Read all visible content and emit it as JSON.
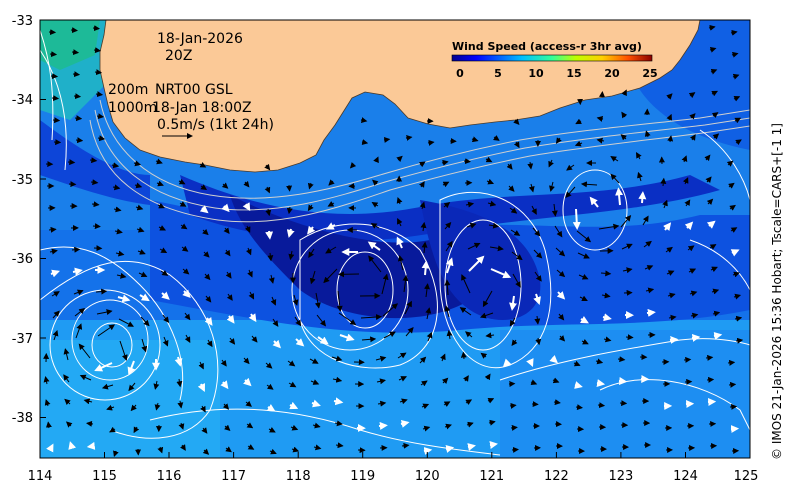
{
  "map": {
    "timestamp_date": "18-Jan-2026",
    "timestamp_hour": "20Z",
    "contour_label_200": "200m",
    "contour_label_1000": "1000m",
    "product_line1": "NRT00 GSL",
    "product_line2": "18-Jan 18:00Z",
    "scale_label": "0.5m/s (1kt 24h)",
    "credit": "© IMOS 21-Jan-2026 15:36 Hobart; Tscale=CARS+[-1 1]",
    "x_ticks": [
      "114",
      "115",
      "116",
      "117",
      "118",
      "119",
      "120",
      "121",
      "122",
      "123",
      "124",
      "125"
    ],
    "y_ticks": [
      "-33",
      "-34",
      "-35",
      "-36",
      "-37",
      "-38"
    ],
    "land_color": "#fbc997",
    "ocean_colors": [
      "#081a9b",
      "#0a2fc4",
      "#0d52e0",
      "#1470ea",
      "#1d8ef2",
      "#23a9f4"
    ]
  },
  "legend": {
    "title": "Wind Speed (access-r 3hr avg)",
    "ticks": [
      "0",
      "5",
      "10",
      "15",
      "20",
      "25"
    ],
    "min": 0,
    "max": 25
  }
}
